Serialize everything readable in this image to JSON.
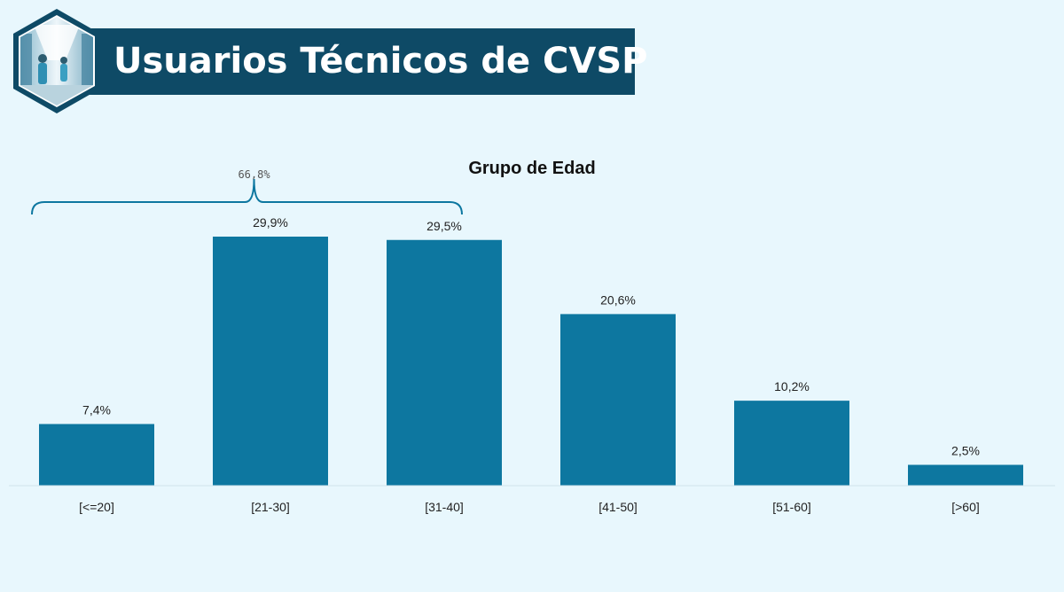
{
  "header": {
    "title": "Usuarios Técnicos de CVSP",
    "banner_color": "#0e4a66",
    "logo_icon": "hospital-corridor-photo"
  },
  "chart_data": {
    "type": "bar",
    "title": "Grupo de Edad",
    "categories": [
      "[<=20]",
      "[21-30]",
      "[31-40]",
      "[41-50]",
      "[51-60]",
      "[>60]"
    ],
    "values": [
      7.4,
      29.9,
      29.5,
      20.6,
      10.2,
      2.5
    ],
    "value_labels": [
      "7,4%",
      "29,9%",
      "29,5%",
      "20,6%",
      "10,2%",
      "2,5%"
    ],
    "bar_color": "#0d77a0",
    "xlabel": "",
    "ylabel": "",
    "ylim": [
      0,
      30
    ],
    "grid": false,
    "annotation": {
      "label": "66,8%",
      "spans": [
        "[<=20]",
        "[31-40]"
      ]
    }
  }
}
